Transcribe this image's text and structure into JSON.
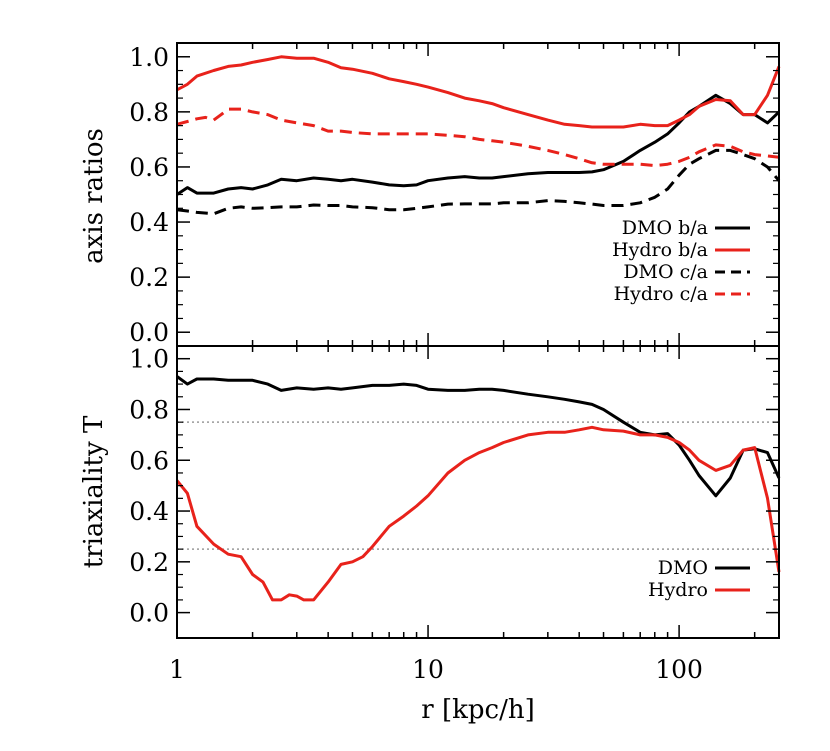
{
  "chart_data": [
    {
      "type": "line",
      "panel": "top",
      "title": "",
      "xlabel": "",
      "ylabel": "axis ratios",
      "xscale": "log",
      "xlim": [
        1,
        250
      ],
      "ylim": [
        -0.05,
        1.05
      ],
      "yticks": [
        "0.0",
        "0.2",
        "0.4",
        "0.6",
        "0.8",
        "1.0"
      ],
      "grid": false,
      "legend_position": "bottom-right",
      "series": [
        {
          "name": "DMO b/a",
          "color": "#000000",
          "dash": "solid",
          "x": [
            1.0,
            1.1,
            1.2,
            1.4,
            1.6,
            1.8,
            2.0,
            2.3,
            2.6,
            3.0,
            3.5,
            4.0,
            4.5,
            5.0,
            6.0,
            7.0,
            8.0,
            9.0,
            10,
            12,
            14,
            16,
            18,
            20,
            25,
            30,
            35,
            40,
            45,
            50,
            60,
            70,
            80,
            90,
            100,
            110,
            120,
            140,
            160,
            180,
            200,
            225,
            250
          ],
          "y": [
            0.5,
            0.525,
            0.505,
            0.505,
            0.52,
            0.525,
            0.52,
            0.535,
            0.555,
            0.55,
            0.56,
            0.555,
            0.55,
            0.555,
            0.545,
            0.535,
            0.532,
            0.535,
            0.55,
            0.56,
            0.565,
            0.56,
            0.56,
            0.565,
            0.575,
            0.58,
            0.58,
            0.58,
            0.582,
            0.59,
            0.62,
            0.66,
            0.69,
            0.72,
            0.76,
            0.8,
            0.82,
            0.86,
            0.83,
            0.79,
            0.79,
            0.76,
            0.8
          ]
        },
        {
          "name": "Hydro b/a",
          "color": "#e8221b",
          "dash": "solid",
          "x": [
            1.0,
            1.1,
            1.2,
            1.4,
            1.6,
            1.8,
            2.0,
            2.3,
            2.6,
            3.0,
            3.5,
            4.0,
            4.5,
            5.0,
            6.0,
            7.0,
            8.0,
            9.0,
            10,
            12,
            14,
            16,
            18,
            20,
            25,
            30,
            35,
            40,
            45,
            50,
            60,
            70,
            80,
            90,
            100,
            110,
            120,
            140,
            160,
            180,
            200,
            225,
            250
          ],
          "y": [
            0.88,
            0.9,
            0.93,
            0.95,
            0.965,
            0.97,
            0.98,
            0.99,
            1.0,
            0.995,
            0.995,
            0.98,
            0.96,
            0.955,
            0.94,
            0.92,
            0.91,
            0.9,
            0.89,
            0.87,
            0.85,
            0.84,
            0.83,
            0.815,
            0.79,
            0.77,
            0.755,
            0.75,
            0.745,
            0.745,
            0.745,
            0.755,
            0.75,
            0.75,
            0.77,
            0.79,
            0.82,
            0.845,
            0.84,
            0.79,
            0.79,
            0.86,
            0.965
          ]
        },
        {
          "name": "DMO c/a",
          "color": "#000000",
          "dash": "dashed",
          "x": [
            1.0,
            1.1,
            1.2,
            1.4,
            1.6,
            1.8,
            2.0,
            2.3,
            2.6,
            3.0,
            3.5,
            4.0,
            4.5,
            5.0,
            6.0,
            7.0,
            8.0,
            9.0,
            10,
            12,
            14,
            16,
            18,
            20,
            25,
            30,
            35,
            40,
            45,
            50,
            60,
            70,
            80,
            90,
            100,
            110,
            120,
            140,
            160,
            180,
            200,
            225,
            250
          ],
          "y": [
            0.445,
            0.44,
            0.435,
            0.43,
            0.45,
            0.455,
            0.45,
            0.452,
            0.455,
            0.455,
            0.462,
            0.46,
            0.46,
            0.455,
            0.452,
            0.445,
            0.445,
            0.45,
            0.455,
            0.465,
            0.466,
            0.466,
            0.466,
            0.47,
            0.47,
            0.478,
            0.475,
            0.47,
            0.465,
            0.46,
            0.46,
            0.47,
            0.49,
            0.52,
            0.57,
            0.61,
            0.63,
            0.66,
            0.66,
            0.645,
            0.63,
            0.6,
            0.55
          ]
        },
        {
          "name": "Hydro c/a",
          "color": "#e8221b",
          "dash": "dashed",
          "x": [
            1.0,
            1.1,
            1.2,
            1.3,
            1.4,
            1.5,
            1.6,
            1.8,
            2.0,
            2.3,
            2.6,
            3.0,
            3.5,
            4.0,
            4.5,
            5.0,
            6.0,
            7.0,
            8.0,
            9.0,
            10,
            12,
            14,
            16,
            18,
            20,
            25,
            30,
            35,
            40,
            45,
            50,
            60,
            70,
            80,
            90,
            100,
            110,
            120,
            140,
            160,
            180,
            200,
            225,
            250
          ],
          "y": [
            0.755,
            0.765,
            0.775,
            0.78,
            0.77,
            0.79,
            0.81,
            0.81,
            0.8,
            0.79,
            0.77,
            0.76,
            0.75,
            0.73,
            0.73,
            0.725,
            0.72,
            0.72,
            0.72,
            0.72,
            0.72,
            0.715,
            0.71,
            0.7,
            0.695,
            0.69,
            0.675,
            0.66,
            0.645,
            0.63,
            0.615,
            0.61,
            0.61,
            0.61,
            0.605,
            0.61,
            0.62,
            0.635,
            0.655,
            0.68,
            0.675,
            0.655,
            0.645,
            0.64,
            0.635
          ]
        }
      ]
    },
    {
      "type": "line",
      "panel": "bottom",
      "title": "",
      "xlabel": "r [kpc/h]",
      "ylabel": "triaxiality T",
      "xscale": "log",
      "xlim": [
        1,
        250
      ],
      "ylim": [
        -0.1,
        1.05
      ],
      "xticks": [
        "1",
        "10",
        "100"
      ],
      "yticks": [
        "0.0",
        "0.2",
        "0.4",
        "0.6",
        "0.8",
        "1.0"
      ],
      "grid": false,
      "reference_lines_y": [
        0.25,
        0.75
      ],
      "reference_line_color": "#999999",
      "legend_position": "bottom-right",
      "series": [
        {
          "name": "DMO",
          "color": "#000000",
          "dash": "solid",
          "x": [
            1.0,
            1.1,
            1.2,
            1.4,
            1.6,
            1.8,
            2.0,
            2.3,
            2.6,
            3.0,
            3.5,
            4.0,
            4.5,
            5.0,
            6.0,
            7.0,
            8.0,
            9.0,
            10,
            12,
            14,
            16,
            18,
            20,
            25,
            30,
            35,
            40,
            45,
            50,
            60,
            70,
            80,
            90,
            100,
            110,
            120,
            140,
            160,
            180,
            200,
            225,
            250
          ],
          "y": [
            0.93,
            0.9,
            0.92,
            0.92,
            0.915,
            0.915,
            0.915,
            0.9,
            0.875,
            0.885,
            0.88,
            0.885,
            0.88,
            0.885,
            0.895,
            0.895,
            0.9,
            0.895,
            0.88,
            0.875,
            0.875,
            0.88,
            0.88,
            0.875,
            0.86,
            0.85,
            0.84,
            0.83,
            0.82,
            0.8,
            0.75,
            0.71,
            0.7,
            0.705,
            0.66,
            0.6,
            0.54,
            0.46,
            0.53,
            0.64,
            0.645,
            0.63,
            0.53
          ]
        },
        {
          "name": "Hydro",
          "color": "#e8221b",
          "dash": "solid",
          "x": [
            1.0,
            1.1,
            1.2,
            1.4,
            1.6,
            1.8,
            2.0,
            2.2,
            2.4,
            2.6,
            2.8,
            3.0,
            3.2,
            3.5,
            4.0,
            4.5,
            5.0,
            5.5,
            6.0,
            7.0,
            8.0,
            9.0,
            10,
            12,
            14,
            16,
            18,
            20,
            25,
            30,
            35,
            40,
            45,
            50,
            60,
            70,
            80,
            90,
            100,
            110,
            120,
            140,
            160,
            180,
            200,
            225,
            250
          ],
          "y": [
            0.52,
            0.47,
            0.34,
            0.27,
            0.23,
            0.22,
            0.15,
            0.12,
            0.05,
            0.05,
            0.07,
            0.065,
            0.05,
            0.05,
            0.12,
            0.19,
            0.2,
            0.22,
            0.26,
            0.34,
            0.38,
            0.42,
            0.46,
            0.55,
            0.6,
            0.63,
            0.65,
            0.67,
            0.7,
            0.71,
            0.71,
            0.72,
            0.73,
            0.72,
            0.715,
            0.7,
            0.7,
            0.69,
            0.67,
            0.64,
            0.6,
            0.56,
            0.58,
            0.64,
            0.65,
            0.45,
            0.16
          ]
        }
      ]
    }
  ]
}
